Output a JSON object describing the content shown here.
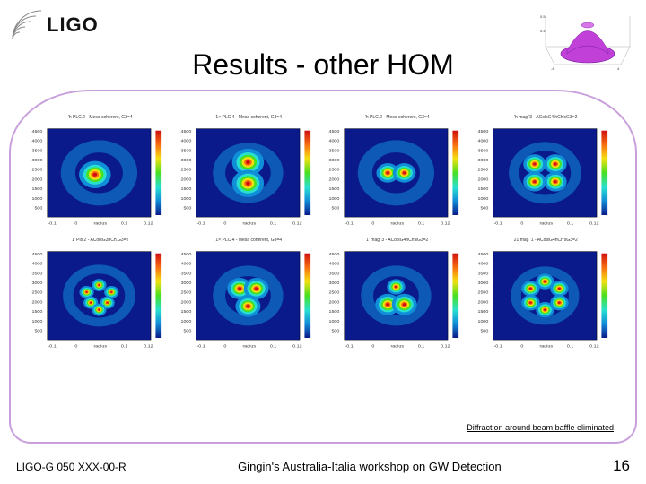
{
  "logo": {
    "text": "LIGO"
  },
  "title": "Results - other  HOM",
  "inset3d": {
    "surface_color": "#c040d8",
    "grid_color": "#888888"
  },
  "border_color": "#c9a0dc",
  "plots": [
    {
      "title": "'h PLC.2 - Mesa coherent, G3=4",
      "pattern": "wobble1"
    },
    {
      "title": "1× PLC 4 - Mesa coherent, G3=4",
      "pattern": "twoLobeVert"
    },
    {
      "title": "'h PLC.2 - Mesa coherent, G3=4",
      "pattern": "wobble2"
    },
    {
      "title": "'h mag '3 - AColsC4 hCh'sG3=2",
      "pattern": "quad"
    },
    {
      "title": "1' Pls 2 - AColsG3hCh.G3=2",
      "pattern": "cluster"
    },
    {
      "title": "1× PLC 4 - Mesa coherent, G3=4",
      "pattern": "triLobe"
    },
    {
      "title": "1' mag '3 - AColsG4hCh'sG3=2",
      "pattern": "twoBottom"
    },
    {
      "title": "21 mag '1 - AColsG4hCh'sG3=2",
      "pattern": "ring6"
    }
  ],
  "heatmap": {
    "bg": "#0a1a8a",
    "mid": "#118ed8",
    "cyan": "#28e0d0",
    "green": "#48e020",
    "yellow": "#f4e010",
    "orange": "#f87010",
    "red": "#d01010",
    "colorbar": [
      "#0a1a8a",
      "#118ed8",
      "#28e0d0",
      "#48e020",
      "#f4e010",
      "#f87010",
      "#d01010"
    ]
  },
  "axes": {
    "ylabel_vals": [
      "4500",
      "4000",
      "3500",
      "3000",
      "2500",
      "2000",
      "1500",
      "1000",
      "500"
    ],
    "xlabel_vals": [
      "-0.1",
      "0",
      "radius",
      "0.1",
      "0.12"
    ],
    "tick_color": "#333333",
    "tick_fontsize": 4
  },
  "caption": "Diffraction around beam baffle eliminated",
  "footer": {
    "docnum": "LIGO-G 050 XXX-00-R",
    "mid": "Gingin's Australia-Italia workshop on GW Detection",
    "page": "16"
  }
}
